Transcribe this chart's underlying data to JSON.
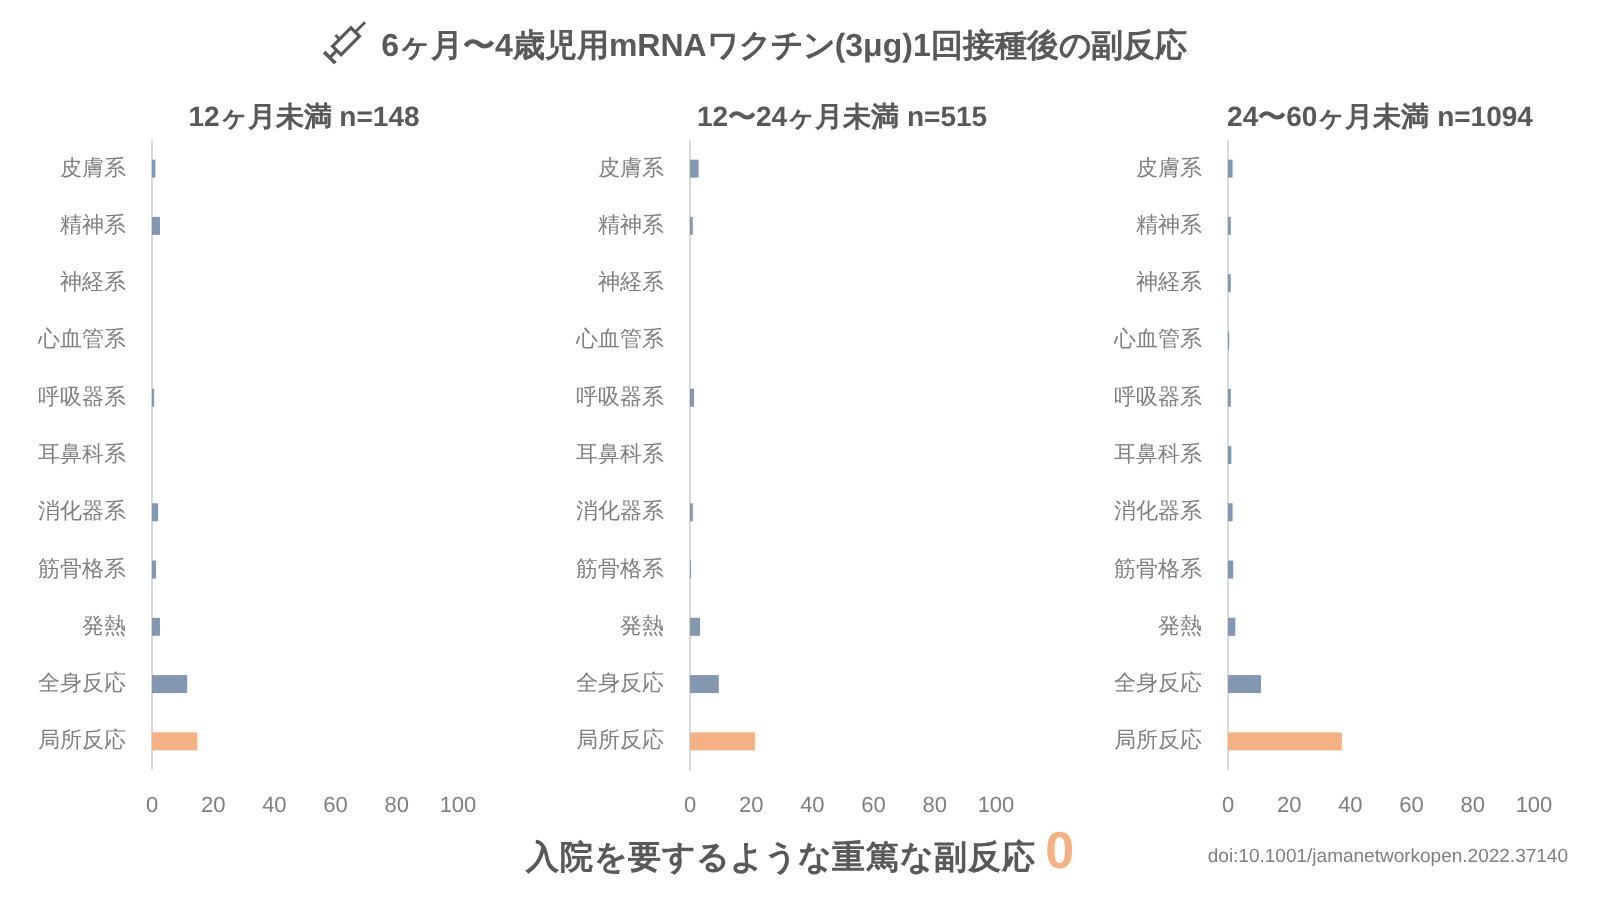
{
  "chart_data": [
    {
      "type": "other",
      "title": "6ヶ月〜4歳児用mRNAワクチン(3μg)1回接種後の副反応",
      "annotations": [
        "入院を要するような重篤な副反応 0",
        "doi:10.1001/jamanetworkopen.2022.37140"
      ]
    },
    {
      "type": "bar",
      "orientation": "horizontal",
      "title": "12ヶ月未満 n=148",
      "categories": [
        "皮膚系",
        "精神系",
        "神経系",
        "心血管系",
        "呼吸器系",
        "耳鼻科系",
        "消化器系",
        "筋骨格系",
        "発熱",
        "全身反応",
        "局所反応"
      ],
      "values": [
        1.1,
        2.6,
        0,
        0,
        0.7,
        0,
        2.0,
        1.3,
        2.6,
        11.5,
        14.8
      ],
      "colors": [
        "#8497b0",
        "#8497b0",
        null,
        null,
        "#8497b0",
        null,
        "#8497b0",
        "#8497b0",
        "#8497b0",
        "#8497b0",
        "#f4b183"
      ],
      "xlim": [
        0,
        100
      ],
      "xticks": [
        0,
        20,
        40,
        60,
        80,
        100
      ]
    },
    {
      "type": "bar",
      "orientation": "horizontal",
      "title": "12〜24ヶ月未満 n=515",
      "categories": [
        "皮膚系",
        "精神系",
        "神経系",
        "心血管系",
        "呼吸器系",
        "耳鼻科系",
        "消化器系",
        "筋骨格系",
        "発熱",
        "全身反応",
        "局所反応"
      ],
      "values": [
        2.8,
        0.9,
        0,
        0,
        1.3,
        0,
        0.9,
        0.3,
        3.3,
        9.4,
        21.2
      ],
      "colors": [
        "#8497b0",
        "#8497b0",
        null,
        null,
        "#8497b0",
        null,
        "#8497b0",
        "#8497b0",
        "#8497b0",
        "#8497b0",
        "#f4b183"
      ],
      "xlim": [
        0,
        100
      ],
      "xticks": [
        0,
        20,
        40,
        60,
        80,
        100
      ]
    },
    {
      "type": "bar",
      "orientation": "horizontal",
      "title": "24〜60ヶ月未満 n=1094",
      "categories": [
        "皮膚系",
        "精神系",
        "神経系",
        "心血管系",
        "呼吸器系",
        "耳鼻科系",
        "消化器系",
        "筋骨格系",
        "発熱",
        "全身反応",
        "局所反応"
      ],
      "values": [
        1.5,
        0.9,
        0.9,
        0.4,
        0.9,
        1.1,
        1.5,
        1.7,
        2.4,
        10.8,
        37.2
      ],
      "colors": [
        "#8497b0",
        "#8497b0",
        "#8497b0",
        "#8497b0",
        "#8497b0",
        "#8497b0",
        "#8497b0",
        "#8497b0",
        "#8497b0",
        "#8497b0",
        "#f4b183"
      ],
      "xlim": [
        0,
        100
      ],
      "xticks": [
        0,
        20,
        40,
        60,
        80,
        100
      ]
    }
  ]
}
